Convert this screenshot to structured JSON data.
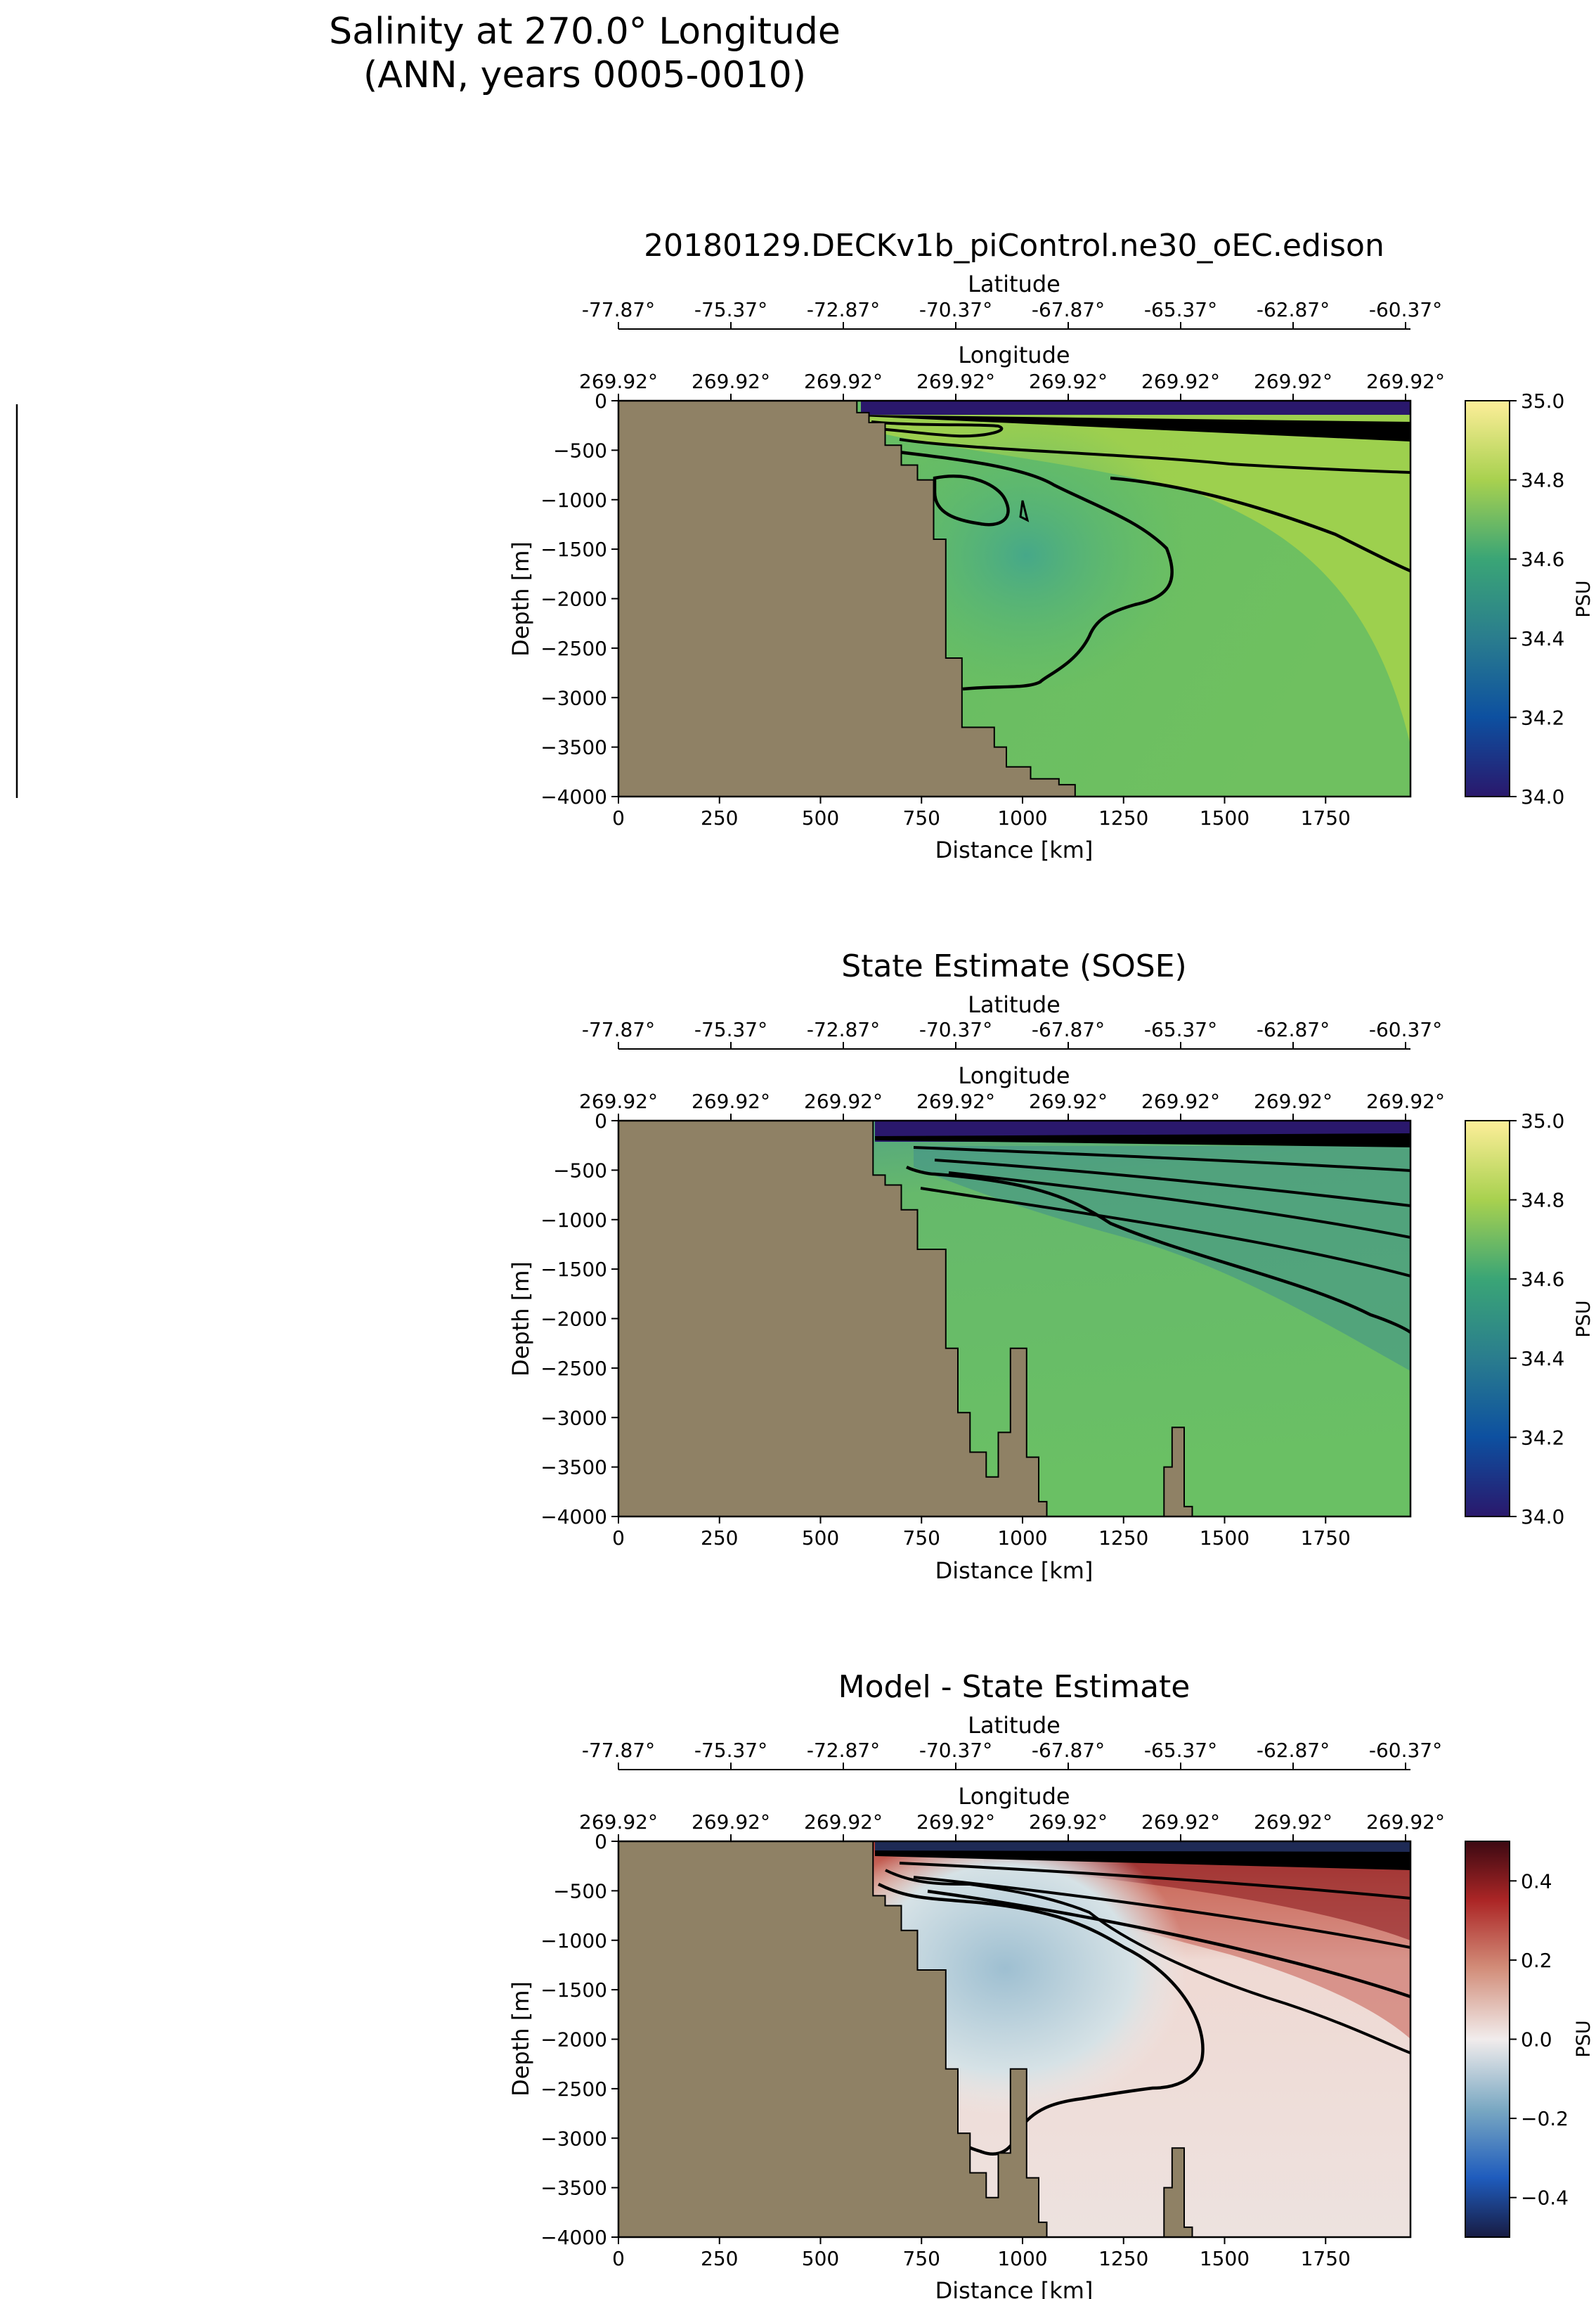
{
  "figure": {
    "title_line1": "Salinity at 270.0° Longitude",
    "title_line2": "(ANN, years 0005-0010)"
  },
  "colors": {
    "land": "#8f8165",
    "background": "#ffffff",
    "contour": "#000000"
  },
  "chart_data": [
    {
      "type": "heatmap",
      "title": "20180129.DECKv1b_piControl.ne30_oEC.edison",
      "xlabel": "Distance [km]",
      "ylabel": "Depth [m]",
      "top_axis1_label": "Latitude",
      "top_axis2_label": "Longitude",
      "xlim": [
        0,
        1960
      ],
      "ylim": [
        -4000,
        0
      ],
      "xticks": [
        0,
        250,
        500,
        750,
        1000,
        1250,
        1500,
        1750
      ],
      "yticks": [
        0,
        -500,
        -1000,
        -1500,
        -2000,
        -2500,
        -3000,
        -3500,
        -4000
      ],
      "latitude_ticks": [
        "-77.87°",
        "-75.37°",
        "-72.87°",
        "-70.37°",
        "-67.87°",
        "-65.37°",
        "-62.87°",
        "-60.37°"
      ],
      "longitude_ticks": [
        "269.92°",
        "269.92°",
        "269.92°",
        "269.92°",
        "269.92°",
        "269.92°",
        "269.92°",
        "269.92°"
      ],
      "colorbar": {
        "label": "PSU",
        "range": [
          34.0,
          35.0
        ],
        "ticks": [
          34.0,
          34.2,
          34.4,
          34.6,
          34.8,
          35.0
        ],
        "tick_labels": [
          "34.0",
          "34.2",
          "34.4",
          "34.6",
          "34.8",
          "35.0"
        ],
        "colormap": "haline"
      },
      "land_profile": [
        [
          0,
          0
        ],
        [
          590,
          0
        ],
        [
          590,
          -120
        ],
        [
          620,
          -120
        ],
        [
          620,
          -220
        ],
        [
          660,
          -220
        ],
        [
          660,
          -450
        ],
        [
          700,
          -450
        ],
        [
          700,
          -650
        ],
        [
          740,
          -650
        ],
        [
          740,
          -800
        ],
        [
          780,
          -800
        ],
        [
          780,
          -1400
        ],
        [
          810,
          -1400
        ],
        [
          810,
          -2600
        ],
        [
          850,
          -2600
        ],
        [
          850,
          -3300
        ],
        [
          930,
          -3300
        ],
        [
          930,
          -3500
        ],
        [
          960,
          -3500
        ],
        [
          960,
          -3700
        ],
        [
          1020,
          -3700
        ],
        [
          1020,
          -3820
        ],
        [
          1090,
          -3820
        ],
        [
          1090,
          -3880
        ],
        [
          1130,
          -3880
        ],
        [
          1130,
          -4000
        ],
        [
          0,
          -4000
        ]
      ],
      "surface_layer_psu": 34.0,
      "interior_psu": 34.6
    },
    {
      "type": "heatmap",
      "title": "State Estimate (SOSE)",
      "xlabel": "Distance [km]",
      "ylabel": "Depth [m]",
      "top_axis1_label": "Latitude",
      "top_axis2_label": "Longitude",
      "xlim": [
        0,
        1960
      ],
      "ylim": [
        -4000,
        0
      ],
      "xticks": [
        0,
        250,
        500,
        750,
        1000,
        1250,
        1500,
        1750
      ],
      "yticks": [
        0,
        -500,
        -1000,
        -1500,
        -2000,
        -2500,
        -3000,
        -3500,
        -4000
      ],
      "latitude_ticks": [
        "-77.87°",
        "-75.37°",
        "-72.87°",
        "-70.37°",
        "-67.87°",
        "-65.37°",
        "-62.87°",
        "-60.37°"
      ],
      "longitude_ticks": [
        "269.92°",
        "269.92°",
        "269.92°",
        "269.92°",
        "269.92°",
        "269.92°",
        "269.92°",
        "269.92°"
      ],
      "colorbar": {
        "label": "PSU",
        "range": [
          34.0,
          35.0
        ],
        "ticks": [
          34.0,
          34.2,
          34.4,
          34.6,
          34.8,
          35.0
        ],
        "tick_labels": [
          "34.0",
          "34.2",
          "34.4",
          "34.6",
          "34.8",
          "35.0"
        ],
        "colormap": "haline"
      },
      "land_profile": [
        [
          0,
          0
        ],
        [
          630,
          0
        ],
        [
          630,
          -550
        ],
        [
          660,
          -550
        ],
        [
          660,
          -650
        ],
        [
          700,
          -650
        ],
        [
          700,
          -900
        ],
        [
          740,
          -900
        ],
        [
          740,
          -1300
        ],
        [
          810,
          -1300
        ],
        [
          810,
          -2300
        ],
        [
          840,
          -2300
        ],
        [
          840,
          -2950
        ],
        [
          870,
          -2950
        ],
        [
          870,
          -3350
        ],
        [
          910,
          -3350
        ],
        [
          910,
          -3600
        ],
        [
          940,
          -3600
        ],
        [
          940,
          -3150
        ],
        [
          970,
          -3150
        ],
        [
          970,
          -2300
        ],
        [
          1010,
          -2300
        ],
        [
          1010,
          -3400
        ],
        [
          1040,
          -3400
        ],
        [
          1040,
          -3850
        ],
        [
          1060,
          -3850
        ],
        [
          1060,
          -4000
        ],
        [
          1350,
          -4000
        ],
        [
          1350,
          -3500
        ],
        [
          1370,
          -3500
        ],
        [
          1370,
          -3100
        ],
        [
          1400,
          -3100
        ],
        [
          1400,
          -3900
        ],
        [
          1420,
          -3900
        ],
        [
          1420,
          -4000
        ],
        [
          0,
          -4000
        ]
      ],
      "surface_layer_psu": 34.0,
      "interior_psu": 34.7
    },
    {
      "type": "heatmap",
      "title": "Model - State Estimate",
      "xlabel": "Distance [km]",
      "ylabel": "Depth [m]",
      "top_axis1_label": "Latitude",
      "top_axis2_label": "Longitude",
      "xlim": [
        0,
        1960
      ],
      "ylim": [
        -4000,
        0
      ],
      "xticks": [
        0,
        250,
        500,
        750,
        1000,
        1250,
        1500,
        1750
      ],
      "yticks": [
        0,
        -500,
        -1000,
        -1500,
        -2000,
        -2500,
        -3000,
        -3500,
        -4000
      ],
      "latitude_ticks": [
        "-77.87°",
        "-75.37°",
        "-72.87°",
        "-70.37°",
        "-67.87°",
        "-65.37°",
        "-62.87°",
        "-60.37°"
      ],
      "longitude_ticks": [
        "269.92°",
        "269.92°",
        "269.92°",
        "269.92°",
        "269.92°",
        "269.92°",
        "269.92°",
        "269.92°"
      ],
      "colorbar": {
        "label": "PSU",
        "range": [
          -0.5,
          0.5
        ],
        "ticks": [
          -0.4,
          -0.2,
          0.0,
          0.2,
          0.4
        ],
        "tick_labels": [
          "−0.4",
          "−0.2",
          "0.0",
          "0.2",
          "0.4"
        ],
        "colormap": "balance"
      },
      "land_profile": [
        [
          0,
          0
        ],
        [
          630,
          0
        ],
        [
          630,
          -550
        ],
        [
          660,
          -550
        ],
        [
          660,
          -650
        ],
        [
          700,
          -650
        ],
        [
          700,
          -900
        ],
        [
          740,
          -900
        ],
        [
          740,
          -1300
        ],
        [
          810,
          -1300
        ],
        [
          810,
          -2300
        ],
        [
          840,
          -2300
        ],
        [
          840,
          -2950
        ],
        [
          870,
          -2950
        ],
        [
          870,
          -3350
        ],
        [
          910,
          -3350
        ],
        [
          910,
          -3600
        ],
        [
          940,
          -3600
        ],
        [
          940,
          -3150
        ],
        [
          970,
          -3150
        ],
        [
          970,
          -2300
        ],
        [
          1010,
          -2300
        ],
        [
          1010,
          -3400
        ],
        [
          1040,
          -3400
        ],
        [
          1040,
          -3850
        ],
        [
          1060,
          -3850
        ],
        [
          1060,
          -4000
        ],
        [
          1350,
          -4000
        ],
        [
          1350,
          -3500
        ],
        [
          1370,
          -3500
        ],
        [
          1370,
          -3100
        ],
        [
          1400,
          -3100
        ],
        [
          1400,
          -3900
        ],
        [
          1420,
          -3900
        ],
        [
          1420,
          -4000
        ],
        [
          0,
          -4000
        ]
      ],
      "surface_layer_psu": -0.5,
      "interior_psu": 0.05
    }
  ]
}
